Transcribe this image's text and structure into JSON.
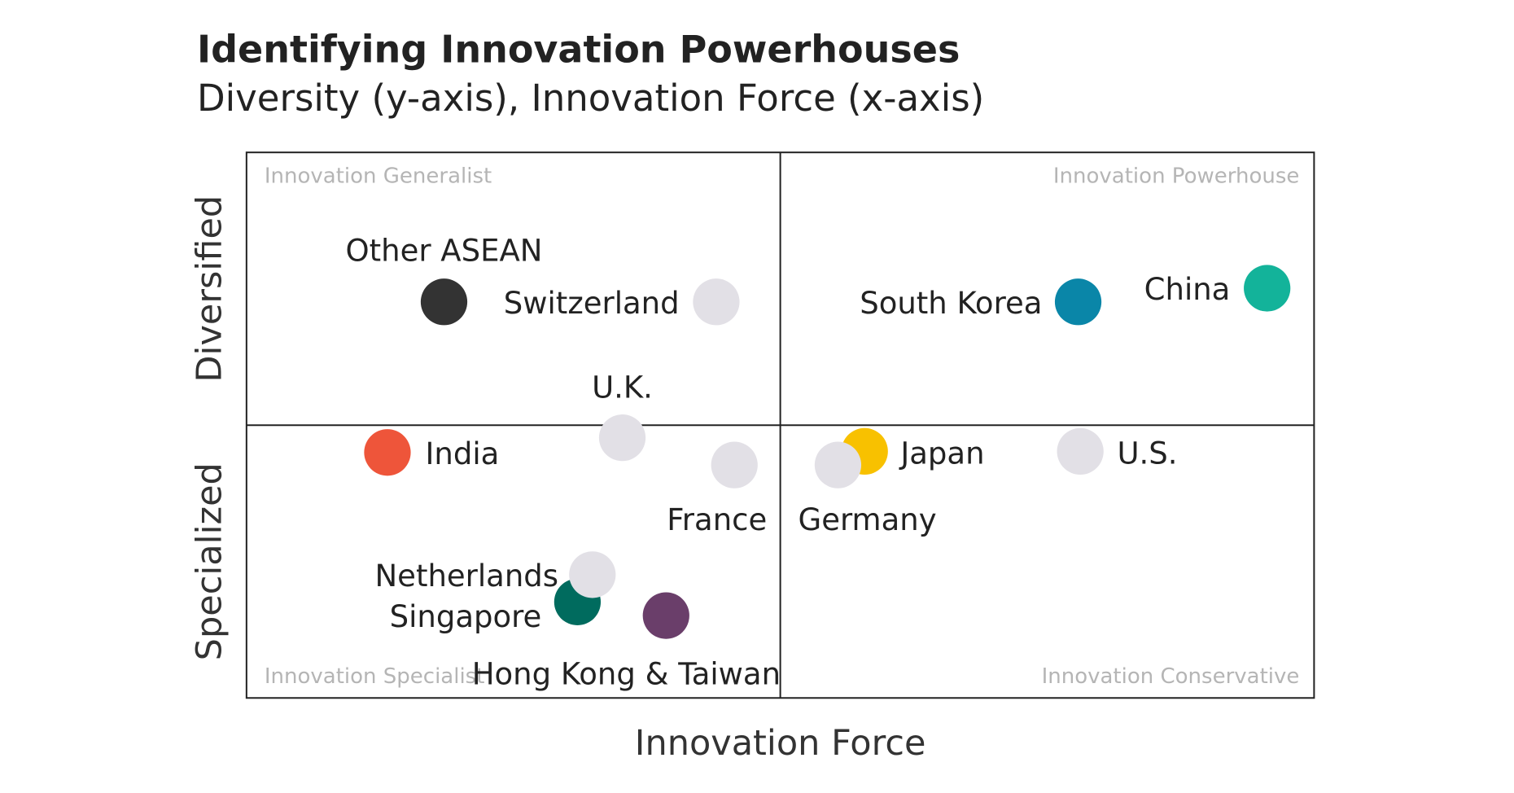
{
  "chart_data": {
    "type": "scatter",
    "title": "Identifying Innovation Powerhouses",
    "subtitle": "Diversity (y-axis), Innovation Force (x-axis)",
    "x_label": "Innovation Force",
    "y_labels": [
      "Specialized",
      "Diversified"
    ],
    "quadrant_labels": [
      "Innovation Generalist",
      "Innovation Powerhouse",
      "Innovation Specialist",
      "Innovation Conservative"
    ],
    "xlim": [
      0,
      100
    ],
    "ylim": [
      0,
      100
    ],
    "series": [
      {
        "name": "Other ASEAN",
        "color": "#333333",
        "x": [
          18.5
        ],
        "values": [
          72.6
        ]
      },
      {
        "name": "Switzerland",
        "color": "#e2e0e6",
        "x": [
          44
        ],
        "values": [
          72.6
        ]
      },
      {
        "name": "South Korea",
        "color": "#0a86a8",
        "x": [
          77.9
        ],
        "values": [
          72.6
        ]
      },
      {
        "name": "China",
        "color": "#13b39a",
        "x": [
          95.6
        ],
        "values": [
          75.1
        ]
      },
      {
        "name": "U.K.",
        "color": "#e2e0e6",
        "x": [
          35.2
        ],
        "values": [
          47.7
        ]
      },
      {
        "name": "India",
        "color": "#ee553a",
        "x": [
          13.2
        ],
        "values": [
          45
        ]
      },
      {
        "name": "France",
        "color": "#e2e0e6",
        "x": [
          45.7
        ],
        "values": [
          42.7
        ]
      },
      {
        "name": "Japan",
        "color": "#f8c100",
        "x": [
          57.9
        ],
        "values": [
          45.2
        ]
      },
      {
        "name": "Germany",
        "color": "#e2e0e6",
        "x": [
          55.4
        ],
        "values": [
          42.7
        ]
      },
      {
        "name": "U.S.",
        "color": "#e2e0e6",
        "x": [
          78.1
        ],
        "values": [
          45.2
        ]
      },
      {
        "name": "Singapore",
        "color": "#006b5e",
        "x": [
          31
        ],
        "values": [
          17.6
        ]
      },
      {
        "name": "Netherlands",
        "color": "#e2e0e6",
        "x": [
          32.4
        ],
        "values": [
          22.6
        ]
      },
      {
        "name": "Hong Kong & Taiwan",
        "color": "#6a3e6a",
        "x": [
          39.3
        ],
        "values": [
          15.1
        ]
      }
    ]
  }
}
